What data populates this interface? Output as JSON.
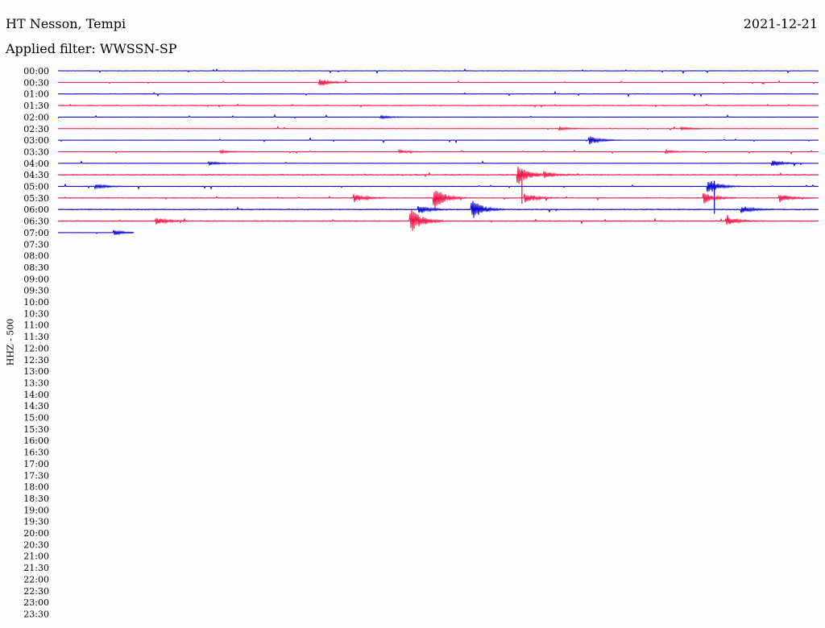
{
  "header": {
    "station": "HT Nesson, Tempi",
    "date": "2021-12-21",
    "filter": "Applied filter: WWSSN-SP"
  },
  "chart_data": {
    "type": "line",
    "title": "HT Nesson, Tempi",
    "subtitle": "Applied filter: WWSSN-SP",
    "ylabel": "HHZ - 500",
    "xlabel": "",
    "row_labels": [
      "00:00",
      "00:30",
      "01:00",
      "01:30",
      "02:00",
      "02:30",
      "03:00",
      "03:30",
      "04:00",
      "04:30",
      "05:00",
      "05:30",
      "06:00",
      "06:30",
      "07:00",
      "07:30",
      "08:00",
      "08:30",
      "09:00",
      "09:30",
      "10:00",
      "10:30",
      "11:00",
      "11:30",
      "12:00",
      "12:30",
      "13:00",
      "13:30",
      "14:00",
      "14:30",
      "15:00",
      "15:30",
      "16:00",
      "16:30",
      "17:00",
      "17:30",
      "18:00",
      "18:30",
      "19:00",
      "19:30",
      "20:00",
      "20:30",
      "21:00",
      "21:30",
      "22:00",
      "22:30",
      "23:00",
      "23:30"
    ],
    "row_minutes": 30,
    "rows_recorded": 15,
    "last_row_fraction": 0.1,
    "colors": {
      "even_rows": "#0000cc",
      "odd_rows": "#ee1144"
    },
    "noise_level": [
      0.25,
      0.15,
      0.25,
      0.4,
      0.1,
      0.2,
      0.12,
      0.12,
      0.2,
      0.5,
      0.25,
      0.35,
      0.5,
      0.45,
      0.15
    ],
    "events": [
      {
        "row": 1,
        "t": 0.345,
        "amp": 5
      },
      {
        "row": 4,
        "t": 0.425,
        "amp": 2
      },
      {
        "row": 5,
        "t": 0.66,
        "amp": 2
      },
      {
        "row": 5,
        "t": 0.82,
        "amp": 2
      },
      {
        "row": 6,
        "t": 0.7,
        "amp": 5
      },
      {
        "row": 7,
        "t": 0.215,
        "amp": 2
      },
      {
        "row": 7,
        "t": 0.45,
        "amp": 2
      },
      {
        "row": 7,
        "t": 0.8,
        "amp": 2
      },
      {
        "row": 8,
        "t": 0.94,
        "amp": 4
      },
      {
        "row": 8,
        "t": 0.2,
        "amp": 2
      },
      {
        "row": 9,
        "t": 0.605,
        "amp": 12
      },
      {
        "row": 9,
        "t": 0.64,
        "amp": 4
      },
      {
        "row": 9,
        "t": 0.61,
        "amp": 36,
        "spike": true
      },
      {
        "row": 10,
        "t": 0.855,
        "amp": 9
      },
      {
        "row": 10,
        "t": 0.863,
        "amp": 34,
        "spike": true
      },
      {
        "row": 10,
        "t": 0.05,
        "amp": 3
      },
      {
        "row": 11,
        "t": 0.495,
        "amp": 14
      },
      {
        "row": 11,
        "t": 0.39,
        "amp": 5
      },
      {
        "row": 11,
        "t": 0.615,
        "amp": 6
      },
      {
        "row": 11,
        "t": 0.95,
        "amp": 5
      },
      {
        "row": 11,
        "t": 0.85,
        "amp": 7
      },
      {
        "row": 12,
        "t": 0.545,
        "amp": 12
      },
      {
        "row": 12,
        "t": 0.475,
        "amp": 5
      },
      {
        "row": 12,
        "t": 0.9,
        "amp": 4
      },
      {
        "row": 13,
        "t": 0.465,
        "amp": 15
      },
      {
        "row": 13,
        "t": 0.88,
        "amp": 5
      },
      {
        "row": 13,
        "t": 0.13,
        "amp": 4
      },
      {
        "row": 14,
        "t": 0.075,
        "amp": 3
      }
    ]
  }
}
